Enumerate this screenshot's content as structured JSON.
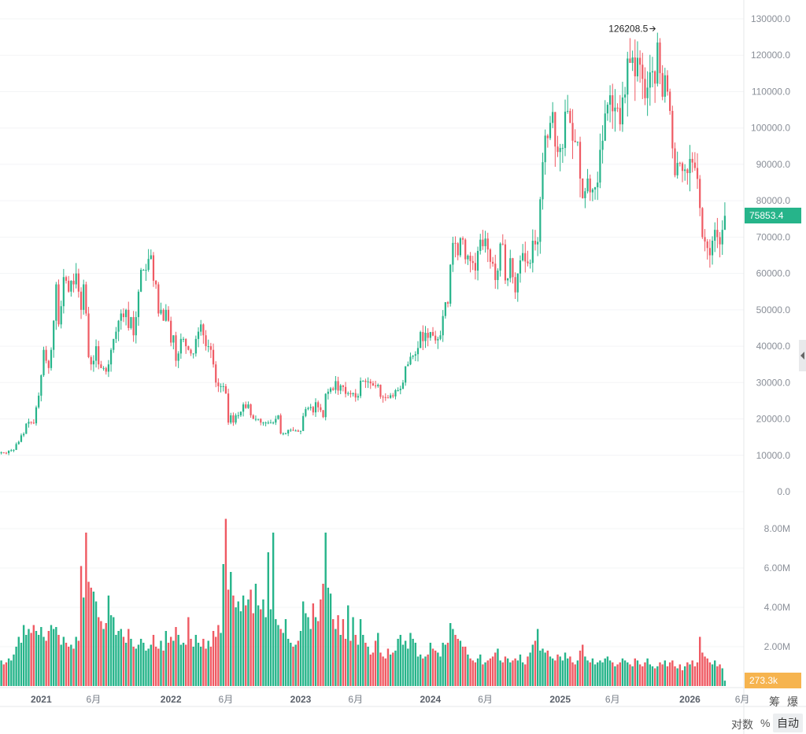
{
  "chart_data": {
    "type": "candlestick",
    "interval": "weekly",
    "colors": {
      "up": "#26b48a",
      "down": "#ef5a63",
      "volume_badge": "#f6b44f"
    },
    "price_axis": {
      "ticks": [
        "0.0",
        "10000.0",
        "20000.0",
        "30000.0",
        "40000.0",
        "50000.0",
        "60000.0",
        "70000.0",
        "80000.0",
        "90000.0",
        "100000.0",
        "110000.0",
        "120000.0",
        "130000.0"
      ],
      "range": [
        0,
        130000
      ]
    },
    "volume_axis": {
      "ticks": [
        "2.00M",
        "4.00M",
        "6.00M",
        "8.00M"
      ],
      "range": [
        0,
        8000000
      ]
    },
    "x_labels": [
      {
        "label": "2021",
        "week": 16,
        "year": true
      },
      {
        "label": "6月",
        "week": 37
      },
      {
        "label": "2022",
        "week": 68,
        "year": true
      },
      {
        "label": "6月",
        "week": 90
      },
      {
        "label": "2023",
        "week": 120,
        "year": true
      },
      {
        "label": "6月",
        "week": 142
      },
      {
        "label": "2024",
        "week": 172,
        "year": true
      },
      {
        "label": "6月",
        "week": 194
      },
      {
        "label": "2025",
        "week": 224,
        "year": true
      },
      {
        "label": "6月",
        "week": 245
      },
      {
        "label": "2026",
        "week": 276,
        "year": true
      },
      {
        "label": "6月",
        "week": 297
      }
    ],
    "start_open_k": 10.6,
    "close_k": [
      10.8,
      10.7,
      10.6,
      11.3,
      11.4,
      11.5,
      13.1,
      13.7,
      15.5,
      15.9,
      18.7,
      19.2,
      19.0,
      18.8,
      23.2,
      26.4,
      32,
      39,
      36,
      34,
      39,
      47,
      57,
      46,
      51,
      59,
      58,
      55,
      58,
      57,
      60,
      55,
      50,
      57,
      49,
      37,
      35,
      36,
      40,
      35,
      34,
      34,
      33,
      35,
      39,
      42,
      44,
      47,
      49,
      48,
      50,
      45,
      48,
      43,
      48,
      55,
      61,
      61,
      61,
      64,
      65,
      58,
      57,
      49,
      50,
      47,
      50,
      47,
      41,
      43,
      36,
      38,
      42,
      42,
      40,
      39,
      38,
      38,
      42,
      44,
      46,
      43,
      40,
      40,
      39,
      35,
      30,
      29,
      29,
      29,
      27,
      19,
      21,
      19,
      21,
      21,
      22,
      24,
      23,
      24,
      21,
      20,
      20,
      20,
      19,
      19,
      19,
      19,
      19,
      19,
      20,
      21,
      16,
      16,
      16,
      17,
      17,
      16.8,
      16.8,
      16.5,
      16.7,
      20.8,
      22.7,
      23.0,
      23.3,
      21.8,
      24.6,
      23.2,
      22.4,
      20.5,
      26.9,
      27.5,
      28.4,
      28.0,
      30.4,
      27.8,
      29.2,
      28.8,
      26.9,
      27.1,
      26.8,
      27.1,
      25.9,
      26.3,
      30.5,
      30.5,
      30.2,
      30.3,
      29.8,
      29.2,
      29.0,
      29.4,
      26.1,
      26.0,
      25.9,
      25.8,
      26.5,
      26.2,
      27.9,
      27.9,
      28.3,
      30.0,
      34.5,
      35.0,
      37.1,
      37.4,
      37.8,
      39.5,
      43.9,
      41.4,
      43.7,
      42.3,
      43.9,
      42.9,
      41.6,
      42.0,
      43.0,
      48.3,
      52.1,
      51.7,
      62.4,
      68.4,
      68.3,
      65.0,
      69.7,
      69.3,
      63.9,
      64.9,
      63.4,
      62.9,
      60.8,
      66.2,
      69.3,
      67.5,
      69.6,
      66.6,
      63.2,
      62.7,
      58.2,
      60.8,
      68.2,
      68.0,
      58.1,
      58.7,
      64.2,
      59.0,
      54.8,
      60.0,
      63.6,
      65.6,
      63.3,
      62.8,
      62.9,
      69.0,
      68.0,
      68.7,
      80.4,
      90.6,
      97.9,
      97.2,
      101.4,
      104.4,
      94.9,
      93.4,
      94.5,
      94.5,
      104.5,
      104.7,
      101.4,
      96.5,
      96.1,
      96.2,
      86.1,
      80.7,
      82.6,
      86.1,
      82.3,
      83.1,
      83.7,
      85.0,
      94.0,
      96.5,
      104.0,
      106.4,
      109.0,
      104.6,
      105.6,
      105.5,
      101.0,
      108.4,
      109.2,
      119.1,
      117.9,
      119.4,
      114.2,
      119.3,
      117.4,
      113.5,
      108.2,
      111.1,
      115.3,
      115.6,
      112.2,
      123.5,
      115.1,
      108.6,
      114.5,
      110.0,
      104.7,
      94.4,
      87.0,
      90.4,
      90.3,
      88.2,
      88.6,
      87.6,
      91.5,
      90.5,
      89.0,
      86.0,
      78.0,
      70.0,
      68.8,
      67.0,
      65.0,
      69.0,
      72.0,
      70.0,
      68.0,
      72.0,
      75.8534
    ],
    "volume_m": [
      1.3,
      1.1,
      1.2,
      1.4,
      1.3,
      1.6,
      2.0,
      2.5,
      2.2,
      3.1,
      2.6,
      2.9,
      2.7,
      3.1,
      2.8,
      2.6,
      3.0,
      2.5,
      2.3,
      2.8,
      3.1,
      2.9,
      3.0,
      2.6,
      2.1,
      2.5,
      2.2,
      2.0,
      2.1,
      1.9,
      2.5,
      2.3,
      6.1,
      4.5,
      7.8,
      5.3,
      5.0,
      4.8,
      4.3,
      3.5,
      3.3,
      2.9,
      3.2,
      4.6,
      3.6,
      3.5,
      2.6,
      2.8,
      2.9,
      2.5,
      2.2,
      2.9,
      2.4,
      2.0,
      1.9,
      2.1,
      2.4,
      2.2,
      1.8,
      1.9,
      2.1,
      2.6,
      2.0,
      1.9,
      2.3,
      1.8,
      2.8,
      2.2,
      2.5,
      2.3,
      3.0,
      2.6,
      2.1,
      2.2,
      2.1,
      3.5,
      2.4,
      2.0,
      2.6,
      2.2,
      2.0,
      2.4,
      1.9,
      2.3,
      2.0,
      2.8,
      2.5,
      3.1,
      2.7,
      6.2,
      8.5,
      4.9,
      5.8,
      4.6,
      4.0,
      4.3,
      3.8,
      4.6,
      4.1,
      4.4,
      4.9,
      3.7,
      5.2,
      4.1,
      3.9,
      4.4,
      3.5,
      6.8,
      3.9,
      7.8,
      3.4,
      3.1,
      2.9,
      2.7,
      3.4,
      2.4,
      2.2,
      2.0,
      2.1,
      2.3,
      2.8,
      4.3,
      3.7,
      3.5,
      2.9,
      4.2,
      3.5,
      3.3,
      4.4,
      5.2,
      7.8,
      5.0,
      4.7,
      3.4,
      2.9,
      3.6,
      2.6,
      3.4,
      2.4,
      4.1,
      2.3,
      3.5,
      2.6,
      2.1,
      3.4,
      2.6,
      2.2,
      2.0,
      1.6,
      1.7,
      2.3,
      2.7,
      1.7,
      1.5,
      1.4,
      1.9,
      1.6,
      1.7,
      1.8,
      2.4,
      2.6,
      2.1,
      2.3,
      1.9,
      2.7,
      2.4,
      2.2,
      1.5,
      1.6,
      1.4,
      1.5,
      1.6,
      2.2,
      1.9,
      1.8,
      1.7,
      1.5,
      2.2,
      2.1,
      2.2,
      3.2,
      2.9,
      2.6,
      2.4,
      2.3,
      2.0,
      2.0,
      1.6,
      1.4,
      1.3,
      1.2,
      1.4,
      1.6,
      1.1,
      1.2,
      1.3,
      1.4,
      1.5,
      1.7,
      1.9,
      1.3,
      1.2,
      1.5,
      1.4,
      1.2,
      1.3,
      1.4,
      1.3,
      1.6,
      1.2,
      1.1,
      1.5,
      1.7,
      2.1,
      2.3,
      2.9,
      1.8,
      1.9,
      1.7,
      1.8,
      1.5,
      1.4,
      1.3,
      1.6,
      1.5,
      1.3,
      1.7,
      1.4,
      1.5,
      1.2,
      1.1,
      1.3,
      1.8,
      2.1,
      1.5,
      1.3,
      1.2,
      1.4,
      1.1,
      1.2,
      1.3,
      1.2,
      1.4,
      1.5,
      1.3,
      1.2,
      1.0,
      1.1,
      1.2,
      1.4,
      1.3,
      1.2,
      1.1,
      1.0,
      1.4,
      1.3,
      1.1,
      1.0,
      1.2,
      1.4,
      1.1,
      1.0,
      0.9,
      1.0,
      1.2,
      1.1,
      1.3,
      1.0,
      1.2,
      1.3,
      1.0,
      0.9,
      1.1,
      0.8,
      1.0,
      1.2,
      1.1,
      1.3,
      1.0,
      1.2,
      2.5,
      1.7,
      1.5,
      1.4,
      1.2,
      1.1,
      1.3,
      1.0,
      1.1,
      0.9,
      0.2733
    ],
    "ath": {
      "label": "126208.5",
      "value_k": 126.2085,
      "week": 263
    },
    "last_price": "75853.4",
    "last_volume": "273.3k"
  },
  "controls": {
    "chip": "筹",
    "burst": "爆",
    "log": "对数",
    "percent": "%",
    "auto": "自动"
  }
}
